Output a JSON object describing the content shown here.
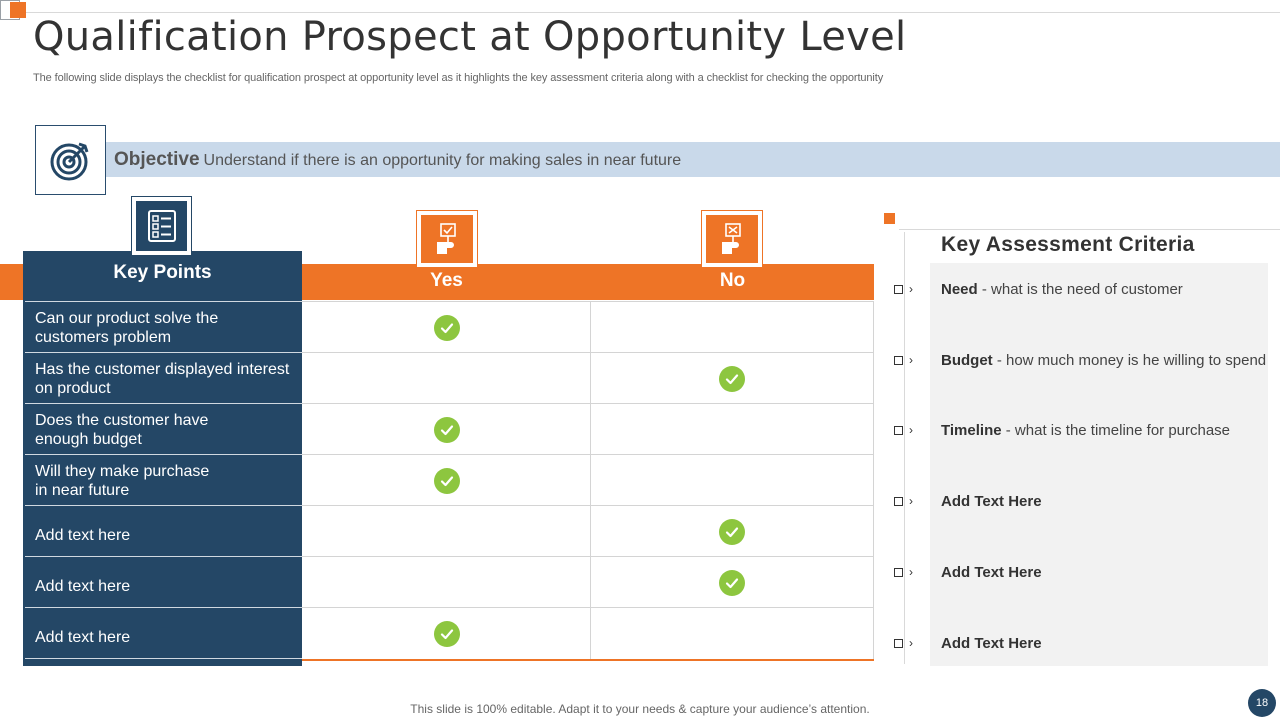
{
  "title": "Qualification Prospect at Opportunity Level",
  "subtitle": "The following slide displays the checklist for qualification prospect at opportunity level as it highlights the key assessment criteria along with a checklist for checking the opportunity",
  "objective": {
    "label": "Objective",
    "text": "Understand if there is an opportunity  for making sales in near future",
    "icon": "target-icon"
  },
  "table": {
    "key_points_header": "Key Points",
    "yes_header": "Yes",
    "no_header": "No",
    "rows": [
      {
        "text": "Can our product solve the customers problem",
        "line1": "Can our product solve the",
        "line2": "customers problem",
        "answer": "yes"
      },
      {
        "text": "Has the customer displayed interest on product",
        "line1": "Has the customer  displayed interest",
        "line2": "on product",
        "answer": "no"
      },
      {
        "text": "Does the customer have enough budget",
        "line1": "Does the customer  have",
        "line2": "enough budget",
        "answer": "yes"
      },
      {
        "text": "Will they make purchase in near future",
        "line1": "Will they  make purchase",
        "line2": "in near future",
        "answer": "yes"
      },
      {
        "text": "Add text here",
        "line1": "Add text here",
        "line2": "",
        "answer": "no"
      },
      {
        "text": "Add text here",
        "line1": "Add text here",
        "line2": "",
        "answer": "no"
      },
      {
        "text": "Add text here",
        "line1": "Add text here",
        "line2": "",
        "answer": "yes"
      }
    ],
    "colors": {
      "navy": "#244766",
      "orange": "#EE7426",
      "check_green": "#8DC63F"
    }
  },
  "criteria": {
    "title": "Key Assessment  Criteria",
    "items": [
      {
        "bold": "Need",
        "text": " - what is the need of customer"
      },
      {
        "bold": "Budget",
        "text": " - how much money is he willing to spend"
      },
      {
        "bold": "Timeline",
        "text": " - what is the timeline for purchase"
      },
      {
        "bold": "Add  Text Here",
        "text": ""
      },
      {
        "bold": "Add  Text Here",
        "text": ""
      },
      {
        "bold": "Add  Text Here",
        "text": ""
      }
    ]
  },
  "footer": "This slide is 100% editable. Adapt it to your needs & capture your audience’s attention.",
  "page_number": "18"
}
